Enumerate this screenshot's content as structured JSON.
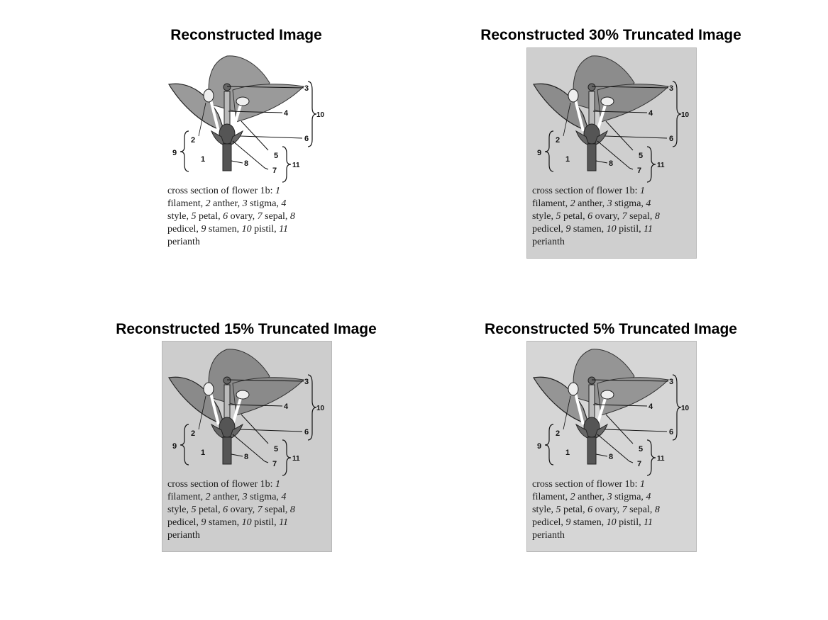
{
  "panels": [
    {
      "title": "Reconstructed Image",
      "background": "#ffffff",
      "tone": "#9a9a9a"
    },
    {
      "title": "Reconstructed 30% Truncated Image",
      "background": "#cfcfcf",
      "tone": "#8c8c8c"
    },
    {
      "title": "Reconstructed 15% Truncated Image",
      "background": "#cdcdcd",
      "tone": "#8a8a8a"
    },
    {
      "title": "Reconstructed 5% Truncated Image",
      "background": "#d6d6d6",
      "tone": "#959595"
    }
  ],
  "figure": {
    "labels": {
      "l1": "1",
      "l2": "2",
      "l3": "3",
      "l4": "4",
      "l5": "5",
      "l6": "6",
      "l7": "7",
      "l8": "8",
      "l9": "9",
      "l10": "10",
      "l11": "11"
    },
    "caption": {
      "line1_text": "cross section of flower 1b: ",
      "line1_num": "1",
      "line2_text_a": "filament, ",
      "line2_num_a": "2",
      "line2_text_b": " anther, ",
      "line2_num_b": "3",
      "line2_text_c": " stigma, ",
      "line2_num_c": "4",
      "line3_text_a": "style, ",
      "line3_num_a": "5",
      "line3_text_b": " petal, ",
      "line3_num_b": "6",
      "line3_text_c": " ovary, ",
      "line3_num_c": "7",
      "line3_text_d": " sepal, ",
      "line3_num_d": "8",
      "line4_text_a": "pedicel, ",
      "line4_num_a": "9",
      "line4_text_b": " stamen, ",
      "line4_num_b": "10",
      "line4_text_c": " pistil, ",
      "line4_num_c": "11",
      "line5_text": "perianth"
    }
  }
}
